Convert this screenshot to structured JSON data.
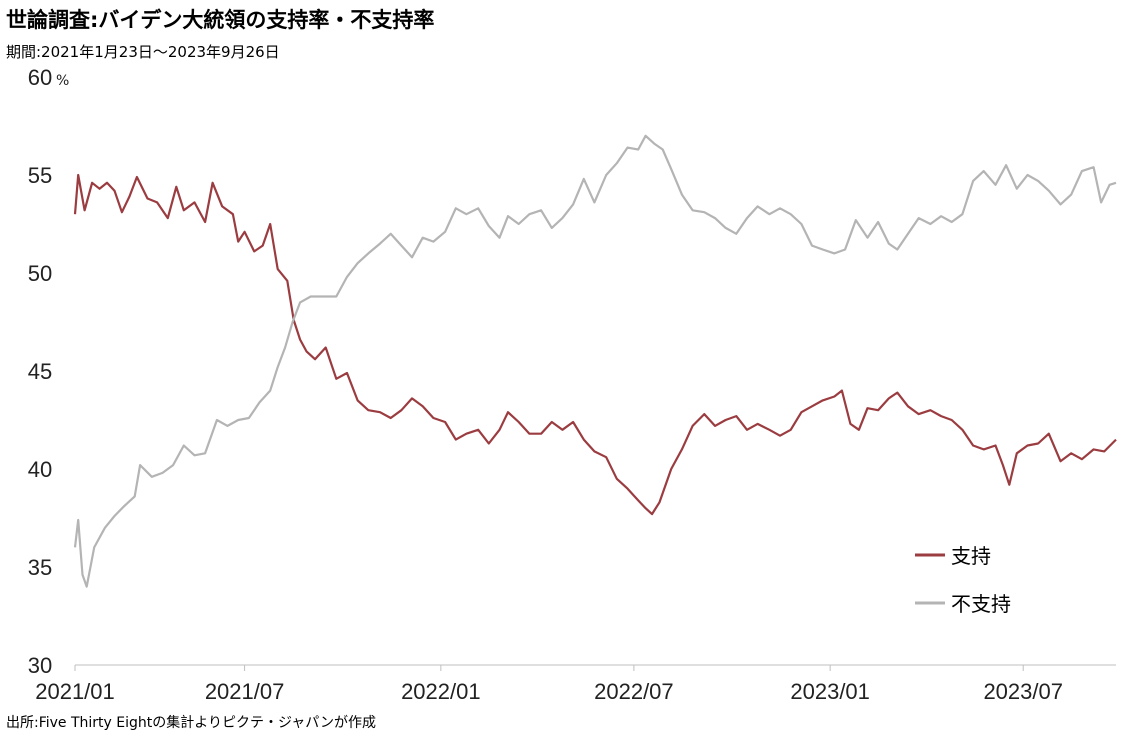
{
  "title": "世論調査:バイデン大統領の支持率・不支持率",
  "subtitle": "期間:2021年1月23日～2023年9月26日",
  "source": "出所:Five Thirty Eightの集計よりピクテ・ジャパンが作成",
  "chart_data": {
    "type": "line",
    "ylim": [
      30,
      60
    ],
    "yticks": [
      30,
      35,
      40,
      45,
      50,
      55,
      60
    ],
    "ytick_labels": [
      "30",
      "35",
      "40",
      "45",
      "50",
      "55",
      "60"
    ],
    "yunit": "%",
    "xlim": [
      "2021-01-23",
      "2023-09-26"
    ],
    "xticks": [
      "2021-01-01",
      "2021-07-01",
      "2022-01-01",
      "2022-07-01",
      "2023-01-01",
      "2023-07-01"
    ],
    "xtick_labels": [
      "2021/01",
      "2021/07",
      "2022/01",
      "2022/07",
      "2023/01",
      "2023/07"
    ],
    "grid": false,
    "legend_position": "bottom-right",
    "series": [
      {
        "name": "支持",
        "color": "#9b3c40",
        "points": [
          [
            "2021-01-23",
            53.0
          ],
          [
            "2021-01-26",
            55.0
          ],
          [
            "2021-02-01",
            53.2
          ],
          [
            "2021-02-08",
            54.6
          ],
          [
            "2021-02-15",
            54.3
          ],
          [
            "2021-02-22",
            54.6
          ],
          [
            "2021-03-01",
            54.2
          ],
          [
            "2021-03-08",
            53.1
          ],
          [
            "2021-03-15",
            53.9
          ],
          [
            "2021-03-22",
            54.9
          ],
          [
            "2021-04-01",
            53.8
          ],
          [
            "2021-04-10",
            53.6
          ],
          [
            "2021-04-20",
            52.8
          ],
          [
            "2021-04-28",
            54.4
          ],
          [
            "2021-05-05",
            53.2
          ],
          [
            "2021-05-15",
            53.6
          ],
          [
            "2021-05-25",
            52.6
          ],
          [
            "2021-06-01",
            54.6
          ],
          [
            "2021-06-10",
            53.4
          ],
          [
            "2021-06-20",
            53.0
          ],
          [
            "2021-06-25",
            51.6
          ],
          [
            "2021-07-01",
            52.1
          ],
          [
            "2021-07-10",
            51.1
          ],
          [
            "2021-07-18",
            51.4
          ],
          [
            "2021-07-25",
            52.5
          ],
          [
            "2021-08-01",
            50.2
          ],
          [
            "2021-08-10",
            49.6
          ],
          [
            "2021-08-16",
            47.6
          ],
          [
            "2021-08-22",
            46.6
          ],
          [
            "2021-08-28",
            46.0
          ],
          [
            "2021-09-05",
            45.6
          ],
          [
            "2021-09-15",
            46.2
          ],
          [
            "2021-09-25",
            44.6
          ],
          [
            "2021-10-05",
            44.9
          ],
          [
            "2021-10-15",
            43.5
          ],
          [
            "2021-10-25",
            43.0
          ],
          [
            "2021-11-05",
            42.9
          ],
          [
            "2021-11-15",
            42.6
          ],
          [
            "2021-11-25",
            43.0
          ],
          [
            "2021-12-05",
            43.6
          ],
          [
            "2021-12-15",
            43.2
          ],
          [
            "2021-12-25",
            42.6
          ],
          [
            "2022-01-05",
            42.4
          ],
          [
            "2022-01-15",
            41.5
          ],
          [
            "2022-01-25",
            41.8
          ],
          [
            "2022-02-05",
            42.0
          ],
          [
            "2022-02-15",
            41.3
          ],
          [
            "2022-02-25",
            42.0
          ],
          [
            "2022-03-05",
            42.9
          ],
          [
            "2022-03-15",
            42.4
          ],
          [
            "2022-03-25",
            41.8
          ],
          [
            "2022-04-05",
            41.8
          ],
          [
            "2022-04-15",
            42.4
          ],
          [
            "2022-04-25",
            42.0
          ],
          [
            "2022-05-05",
            42.4
          ],
          [
            "2022-05-15",
            41.5
          ],
          [
            "2022-05-25",
            40.9
          ],
          [
            "2022-06-05",
            40.6
          ],
          [
            "2022-06-15",
            39.5
          ],
          [
            "2022-06-25",
            39.0
          ],
          [
            "2022-07-05",
            38.4
          ],
          [
            "2022-07-12",
            38.0
          ],
          [
            "2022-07-18",
            37.7
          ],
          [
            "2022-07-25",
            38.3
          ],
          [
            "2022-08-05",
            40.0
          ],
          [
            "2022-08-15",
            41.0
          ],
          [
            "2022-08-25",
            42.2
          ],
          [
            "2022-09-05",
            42.8
          ],
          [
            "2022-09-15",
            42.2
          ],
          [
            "2022-09-25",
            42.5
          ],
          [
            "2022-10-05",
            42.7
          ],
          [
            "2022-10-15",
            42.0
          ],
          [
            "2022-10-25",
            42.3
          ],
          [
            "2022-11-05",
            42.0
          ],
          [
            "2022-11-15",
            41.7
          ],
          [
            "2022-11-25",
            42.0
          ],
          [
            "2022-12-05",
            42.9
          ],
          [
            "2022-12-15",
            43.2
          ],
          [
            "2022-12-25",
            43.5
          ],
          [
            "2023-01-05",
            43.7
          ],
          [
            "2023-01-12",
            44.0
          ],
          [
            "2023-01-20",
            42.3
          ],
          [
            "2023-01-28",
            42.0
          ],
          [
            "2023-02-05",
            43.1
          ],
          [
            "2023-02-15",
            43.0
          ],
          [
            "2023-02-25",
            43.6
          ],
          [
            "2023-03-05",
            43.9
          ],
          [
            "2023-03-15",
            43.2
          ],
          [
            "2023-03-25",
            42.8
          ],
          [
            "2023-04-05",
            43.0
          ],
          [
            "2023-04-15",
            42.7
          ],
          [
            "2023-04-25",
            42.5
          ],
          [
            "2023-05-05",
            42.0
          ],
          [
            "2023-05-15",
            41.2
          ],
          [
            "2023-05-25",
            41.0
          ],
          [
            "2023-06-05",
            41.2
          ],
          [
            "2023-06-12",
            40.2
          ],
          [
            "2023-06-18",
            39.2
          ],
          [
            "2023-06-25",
            40.8
          ],
          [
            "2023-07-05",
            41.2
          ],
          [
            "2023-07-15",
            41.3
          ],
          [
            "2023-07-25",
            41.8
          ],
          [
            "2023-08-05",
            40.4
          ],
          [
            "2023-08-15",
            40.8
          ],
          [
            "2023-08-25",
            40.5
          ],
          [
            "2023-09-05",
            41.0
          ],
          [
            "2023-09-15",
            40.9
          ],
          [
            "2023-09-26",
            41.5
          ]
        ]
      },
      {
        "name": "不支持",
        "color": "#b4b4b4",
        "points": [
          [
            "2021-01-23",
            36.0
          ],
          [
            "2021-01-26",
            37.4
          ],
          [
            "2021-01-30",
            34.6
          ],
          [
            "2021-02-03",
            34.0
          ],
          [
            "2021-02-10",
            36.0
          ],
          [
            "2021-02-20",
            37.0
          ],
          [
            "2021-03-01",
            37.6
          ],
          [
            "2021-03-10",
            38.1
          ],
          [
            "2021-03-20",
            38.6
          ],
          [
            "2021-03-25",
            40.2
          ],
          [
            "2021-04-05",
            39.6
          ],
          [
            "2021-04-15",
            39.8
          ],
          [
            "2021-04-25",
            40.2
          ],
          [
            "2021-05-05",
            41.2
          ],
          [
            "2021-05-15",
            40.7
          ],
          [
            "2021-05-25",
            40.8
          ],
          [
            "2021-06-05",
            42.5
          ],
          [
            "2021-06-15",
            42.2
          ],
          [
            "2021-06-25",
            42.5
          ],
          [
            "2021-07-05",
            42.6
          ],
          [
            "2021-07-15",
            43.4
          ],
          [
            "2021-07-25",
            44.0
          ],
          [
            "2021-08-01",
            45.2
          ],
          [
            "2021-08-08",
            46.2
          ],
          [
            "2021-08-15",
            47.5
          ],
          [
            "2021-08-22",
            48.5
          ],
          [
            "2021-09-01",
            48.8
          ],
          [
            "2021-09-15",
            48.8
          ],
          [
            "2021-09-25",
            48.8
          ],
          [
            "2021-10-05",
            49.8
          ],
          [
            "2021-10-15",
            50.5
          ],
          [
            "2021-10-25",
            51.0
          ],
          [
            "2021-11-05",
            51.5
          ],
          [
            "2021-11-15",
            52.0
          ],
          [
            "2021-11-25",
            51.4
          ],
          [
            "2021-12-05",
            50.8
          ],
          [
            "2021-12-15",
            51.8
          ],
          [
            "2021-12-25",
            51.6
          ],
          [
            "2022-01-05",
            52.1
          ],
          [
            "2022-01-15",
            53.3
          ],
          [
            "2022-01-25",
            53.0
          ],
          [
            "2022-02-05",
            53.3
          ],
          [
            "2022-02-15",
            52.4
          ],
          [
            "2022-02-25",
            51.8
          ],
          [
            "2022-03-05",
            52.9
          ],
          [
            "2022-03-15",
            52.5
          ],
          [
            "2022-03-25",
            53.0
          ],
          [
            "2022-04-05",
            53.2
          ],
          [
            "2022-04-15",
            52.3
          ],
          [
            "2022-04-25",
            52.8
          ],
          [
            "2022-05-05",
            53.5
          ],
          [
            "2022-05-15",
            54.8
          ],
          [
            "2022-05-25",
            53.6
          ],
          [
            "2022-06-05",
            55.0
          ],
          [
            "2022-06-15",
            55.6
          ],
          [
            "2022-06-25",
            56.4
          ],
          [
            "2022-07-05",
            56.3
          ],
          [
            "2022-07-12",
            57.0
          ],
          [
            "2022-07-20",
            56.6
          ],
          [
            "2022-07-28",
            56.3
          ],
          [
            "2022-08-05",
            55.3
          ],
          [
            "2022-08-15",
            54.0
          ],
          [
            "2022-08-25",
            53.2
          ],
          [
            "2022-09-05",
            53.1
          ],
          [
            "2022-09-15",
            52.8
          ],
          [
            "2022-09-25",
            52.3
          ],
          [
            "2022-10-05",
            52.0
          ],
          [
            "2022-10-15",
            52.8
          ],
          [
            "2022-10-25",
            53.4
          ],
          [
            "2022-11-05",
            53.0
          ],
          [
            "2022-11-15",
            53.3
          ],
          [
            "2022-11-25",
            53.0
          ],
          [
            "2022-12-05",
            52.5
          ],
          [
            "2022-12-15",
            51.4
          ],
          [
            "2022-12-25",
            51.2
          ],
          [
            "2023-01-05",
            51.0
          ],
          [
            "2023-01-15",
            51.2
          ],
          [
            "2023-01-25",
            52.7
          ],
          [
            "2023-02-05",
            51.8
          ],
          [
            "2023-02-15",
            52.6
          ],
          [
            "2023-02-25",
            51.5
          ],
          [
            "2023-03-05",
            51.2
          ],
          [
            "2023-03-15",
            52.0
          ],
          [
            "2023-03-25",
            52.8
          ],
          [
            "2023-04-05",
            52.5
          ],
          [
            "2023-04-15",
            52.9
          ],
          [
            "2023-04-25",
            52.6
          ],
          [
            "2023-05-05",
            53.0
          ],
          [
            "2023-05-15",
            54.7
          ],
          [
            "2023-05-25",
            55.2
          ],
          [
            "2023-06-05",
            54.5
          ],
          [
            "2023-06-15",
            55.5
          ],
          [
            "2023-06-25",
            54.3
          ],
          [
            "2023-07-05",
            55.0
          ],
          [
            "2023-07-15",
            54.7
          ],
          [
            "2023-07-25",
            54.2
          ],
          [
            "2023-08-05",
            53.5
          ],
          [
            "2023-08-15",
            54.0
          ],
          [
            "2023-08-25",
            55.2
          ],
          [
            "2023-09-05",
            55.4
          ],
          [
            "2023-09-12",
            53.6
          ],
          [
            "2023-09-20",
            54.5
          ],
          [
            "2023-09-26",
            54.6
          ]
        ]
      }
    ]
  }
}
